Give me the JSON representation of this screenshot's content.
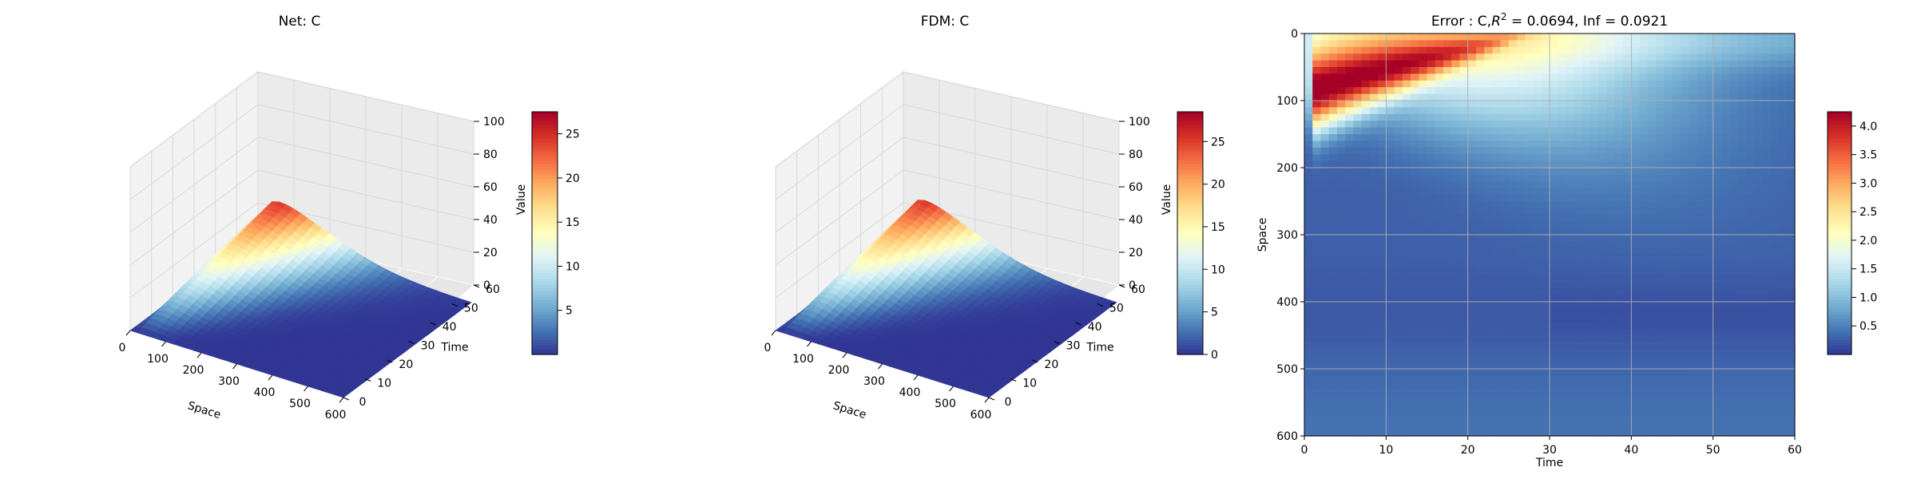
{
  "chart_data": [
    {
      "type": "surface3d",
      "title": "Net: C",
      "xlabel": "Space",
      "ylabel": "Time",
      "zlabel": "Value",
      "xlim": [
        0,
        600
      ],
      "ylim": [
        0,
        60
      ],
      "zlim": [
        0,
        100
      ],
      "xticks": [
        "0",
        "100",
        "200",
        "300",
        "400",
        "500",
        "600"
      ],
      "yticks": [
        "0",
        "10",
        "20",
        "30",
        "40",
        "50",
        "60"
      ],
      "zticks": [
        "0",
        "20",
        "40",
        "60",
        "80",
        "100"
      ],
      "peak": {
        "space": 0,
        "time": 60,
        "value": 27
      },
      "colorbar": {
        "ticks": [
          "5",
          "10",
          "15",
          "20",
          "25"
        ],
        "min": 0,
        "max": 27.5,
        "colormap": "RdYlBu_r"
      }
    },
    {
      "type": "surface3d",
      "title": "FDM: C",
      "xlabel": "Space",
      "ylabel": "Time",
      "zlabel": "Value",
      "xlim": [
        0,
        600
      ],
      "ylim": [
        0,
        60
      ],
      "zlim": [
        0,
        100
      ],
      "xticks": [
        "0",
        "100",
        "200",
        "300",
        "400",
        "500",
        "600"
      ],
      "yticks": [
        "0",
        "10",
        "20",
        "30",
        "40",
        "50",
        "60"
      ],
      "zticks": [
        "0",
        "20",
        "40",
        "60",
        "80",
        "100"
      ],
      "peak": {
        "space": 0,
        "time": 60,
        "value": 28
      },
      "colorbar": {
        "ticks": [
          "0",
          "5",
          "10",
          "15",
          "20",
          "25"
        ],
        "min": 0,
        "max": 28.5,
        "colormap": "RdYlBu_r"
      }
    },
    {
      "type": "heatmap",
      "title_prefix": "Error : C,",
      "title_r": "R",
      "title_sup": "2",
      "title_suffix": " = 0.0694, Inf = 0.0921",
      "xlabel": "Time",
      "ylabel": "Space",
      "xlim": [
        0,
        60
      ],
      "ylim": [
        600,
        0
      ],
      "xticks": [
        "0",
        "10",
        "20",
        "30",
        "40",
        "50",
        "60"
      ],
      "yticks": [
        "0",
        "100",
        "200",
        "300",
        "400",
        "500",
        "600"
      ],
      "grid": true,
      "colorbar": {
        "ticks": [
          "0.5",
          "1.0",
          "1.5",
          "2.0",
          "2.5",
          "3.0",
          "3.5",
          "4.0"
        ],
        "min": 0,
        "max": 4.25,
        "colormap": "RdYlBu_r"
      }
    }
  ]
}
